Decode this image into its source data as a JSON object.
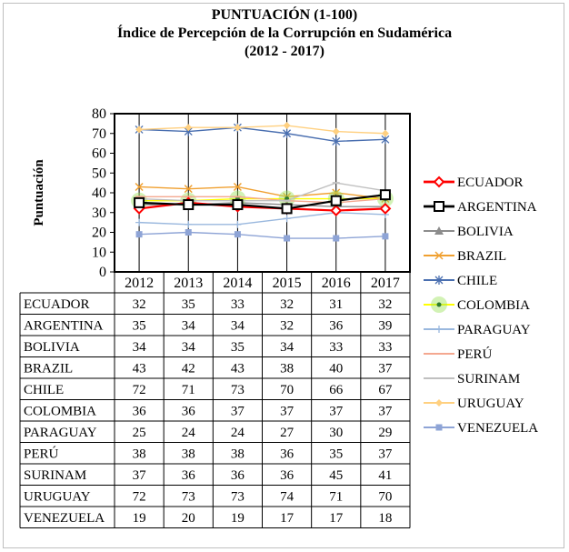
{
  "chart_data": {
    "type": "line",
    "title": "PUNTUACIÓN (1-100)",
    "subtitle": "Índice de Percepción de la Corrupción en Sudamérica",
    "subtitle2": "(2012 - 2017)",
    "ylabel": "Puntuación",
    "xlabel": "",
    "ylim": [
      0,
      80
    ],
    "yticks": [
      0,
      10,
      20,
      30,
      40,
      50,
      60,
      70,
      80
    ],
    "categories": [
      "2012",
      "2013",
      "2014",
      "2015",
      "2016",
      "2017"
    ],
    "grid": "vertical",
    "legend_position": "right",
    "data_table": true,
    "series": [
      {
        "name": "ECUADOR",
        "values": [
          32,
          35,
          33,
          32,
          31,
          32
        ],
        "color": "#ff0000",
        "marker": "diamond-open"
      },
      {
        "name": "ARGENTINA",
        "values": [
          35,
          34,
          34,
          32,
          36,
          39
        ],
        "color": "#000000",
        "marker": "square-open"
      },
      {
        "name": "BOLIVIA",
        "values": [
          34,
          34,
          35,
          34,
          33,
          33
        ],
        "color": "#8c8c8c",
        "marker": "triangle"
      },
      {
        "name": "BRAZIL",
        "values": [
          43,
          42,
          43,
          38,
          40,
          37
        ],
        "color": "#f0a030",
        "marker": "x"
      },
      {
        "name": "CHILE",
        "values": [
          72,
          71,
          73,
          70,
          66,
          67
        ],
        "color": "#4a6fb0",
        "marker": "star"
      },
      {
        "name": "COLOMBIA",
        "values": [
          36,
          36,
          37,
          37,
          37,
          37
        ],
        "color": "#ffff00",
        "marker": "dot-green"
      },
      {
        "name": "PARAGUAY",
        "values": [
          25,
          24,
          24,
          27,
          30,
          29
        ],
        "color": "#9ab8de",
        "marker": "plus"
      },
      {
        "name": "PERÚ",
        "values": [
          38,
          38,
          38,
          36,
          35,
          37
        ],
        "color": "#f4a890",
        "marker": "dash"
      },
      {
        "name": "SURINAM",
        "values": [
          37,
          36,
          36,
          36,
          45,
          41
        ],
        "color": "#c0c0c0",
        "marker": "dash"
      },
      {
        "name": "URUGUAY",
        "values": [
          72,
          73,
          73,
          74,
          71,
          70
        ],
        "color": "#ffd080",
        "marker": "diamond"
      },
      {
        "name": "VENEZUELA",
        "values": [
          19,
          20,
          19,
          17,
          17,
          18
        ],
        "color": "#8ea4d6",
        "marker": "square"
      }
    ]
  }
}
